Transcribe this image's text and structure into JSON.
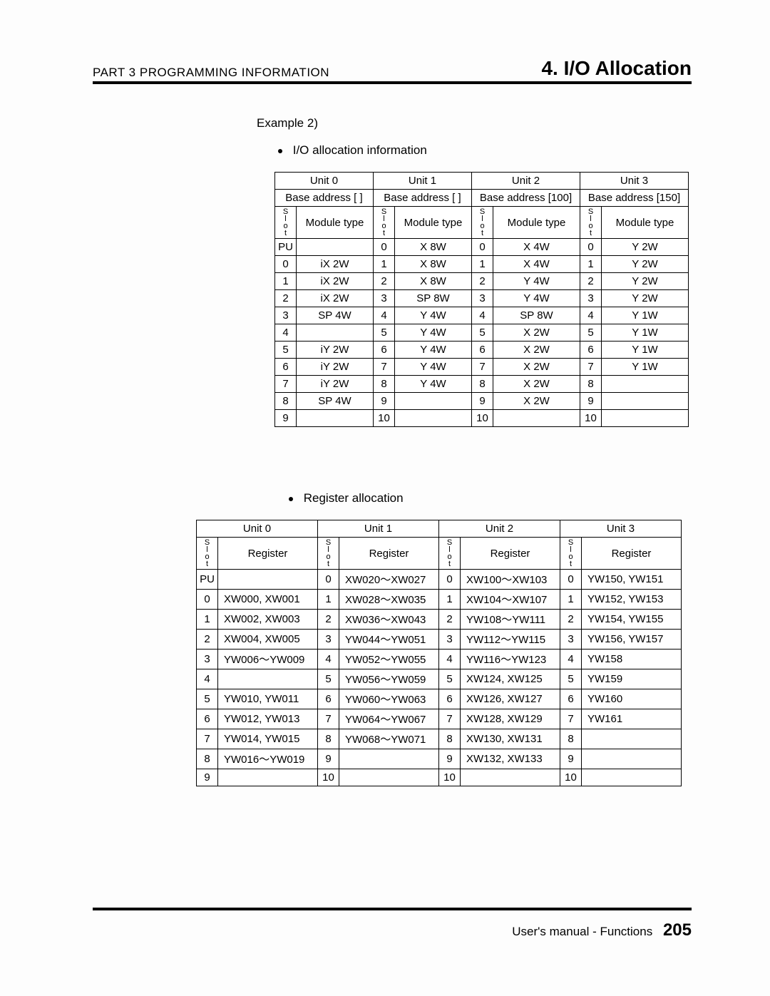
{
  "header": {
    "left": "PART 3  PROGRAMMING  INFORMATION",
    "right": "4. I/O Allocation"
  },
  "example_label": "Example 2)",
  "section1": {
    "bullet": "I/O allocation information",
    "units": [
      "Unit 0",
      "Unit 1",
      "Unit 2",
      "Unit 3"
    ],
    "base_addresses": [
      "Base address [  ]",
      "Base address [  ]",
      "Base address [100]",
      "Base address [150]"
    ],
    "slot_header": "Slot",
    "module_header": "Module type",
    "rows": [
      {
        "u0s": "PU",
        "u0m": "",
        "u1s": "0",
        "u1m": "X 8W",
        "u2s": "0",
        "u2m": "X 4W",
        "u3s": "0",
        "u3m": "Y 2W"
      },
      {
        "u0s": "0",
        "u0m": "iX 2W",
        "u1s": "1",
        "u1m": "X 8W",
        "u2s": "1",
        "u2m": "X 4W",
        "u3s": "1",
        "u3m": "Y 2W"
      },
      {
        "u0s": "1",
        "u0m": "iX 2W",
        "u1s": "2",
        "u1m": "X 8W",
        "u2s": "2",
        "u2m": "Y 4W",
        "u3s": "2",
        "u3m": "Y 2W"
      },
      {
        "u0s": "2",
        "u0m": "iX 2W",
        "u1s": "3",
        "u1m": "SP 8W",
        "u2s": "3",
        "u2m": "Y 4W",
        "u3s": "3",
        "u3m": "Y 2W"
      },
      {
        "u0s": "3",
        "u0m": "SP 4W",
        "u1s": "4",
        "u1m": "Y 4W",
        "u2s": "4",
        "u2m": "SP 8W",
        "u3s": "4",
        "u3m": "Y 1W"
      },
      {
        "u0s": "4",
        "u0m": "",
        "u1s": "5",
        "u1m": "Y 4W",
        "u2s": "5",
        "u2m": "X 2W",
        "u3s": "5",
        "u3m": "Y 1W"
      },
      {
        "u0s": "5",
        "u0m": "iY 2W",
        "u1s": "6",
        "u1m": "Y 4W",
        "u2s": "6",
        "u2m": "X 2W",
        "u3s": "6",
        "u3m": "Y 1W"
      },
      {
        "u0s": "6",
        "u0m": "iY 2W",
        "u1s": "7",
        "u1m": "Y 4W",
        "u2s": "7",
        "u2m": "X 2W",
        "u3s": "7",
        "u3m": "Y 1W"
      },
      {
        "u0s": "7",
        "u0m": "iY 2W",
        "u1s": "8",
        "u1m": "Y 4W",
        "u2s": "8",
        "u2m": "X 2W",
        "u3s": "8",
        "u3m": ""
      },
      {
        "u0s": "8",
        "u0m": "SP 4W",
        "u1s": "9",
        "u1m": "",
        "u2s": "9",
        "u2m": "X 2W",
        "u3s": "9",
        "u3m": ""
      },
      {
        "u0s": "9",
        "u0m": "",
        "u1s": "10",
        "u1m": "",
        "u2s": "10",
        "u2m": "",
        "u3s": "10",
        "u3m": ""
      }
    ]
  },
  "section2": {
    "bullet": "Register allocation",
    "units": [
      "Unit 0",
      "Unit 1",
      "Unit 2",
      "Unit 3"
    ],
    "slot_header": "Slot",
    "register_header": "Register",
    "rows": [
      {
        "u0s": "PU",
        "u0r": "",
        "u1s": "0",
        "u1r": "XW020～XW027",
        "u2s": "0",
        "u2r": "XW100～XW103",
        "u3s": "0",
        "u3r": "YW150,  YW151"
      },
      {
        "u0s": "0",
        "u0r": "XW000,  XW001",
        "u1s": "1",
        "u1r": "XW028～XW035",
        "u2s": "1",
        "u2r": "XW104～XW107",
        "u3s": "1",
        "u3r": "YW152,  YW153"
      },
      {
        "u0s": "1",
        "u0r": "XW002,  XW003",
        "u1s": "2",
        "u1r": "XW036～XW043",
        "u2s": "2",
        "u2r": "YW108～YW111",
        "u3s": "2",
        "u3r": "YW154,  YW155"
      },
      {
        "u0s": "2",
        "u0r": "XW004,  XW005",
        "u1s": "3",
        "u1r": "YW044～YW051",
        "u2s": "3",
        "u2r": "YW112～YW115",
        "u3s": "3",
        "u3r": "YW156,  YW157"
      },
      {
        "u0s": "3",
        "u0r": "YW006～YW009",
        "u1s": "4",
        "u1r": "YW052～YW055",
        "u2s": "4",
        "u2r": "YW116～YW123",
        "u3s": "4",
        "u3r": "YW158"
      },
      {
        "u0s": "4",
        "u0r": "",
        "u1s": "5",
        "u1r": "YW056～YW059",
        "u2s": "5",
        "u2r": "XW124,  XW125",
        "u3s": "5",
        "u3r": "YW159"
      },
      {
        "u0s": "5",
        "u0r": "YW010,  YW011",
        "u1s": "6",
        "u1r": "YW060～YW063",
        "u2s": "6",
        "u2r": "XW126,  XW127",
        "u3s": "6",
        "u3r": "YW160"
      },
      {
        "u0s": "6",
        "u0r": "YW012,  YW013",
        "u1s": "7",
        "u1r": "YW064～YW067",
        "u2s": "7",
        "u2r": "XW128,  XW129",
        "u3s": "7",
        "u3r": "YW161"
      },
      {
        "u0s": "7",
        "u0r": "YW014,  YW015",
        "u1s": "8",
        "u1r": "YW068～YW071",
        "u2s": "8",
        "u2r": "XW130,  XW131",
        "u3s": "8",
        "u3r": ""
      },
      {
        "u0s": "8",
        "u0r": "YW016～YW019",
        "u1s": "9",
        "u1r": "",
        "u2s": "9",
        "u2r": "XW132,  XW133",
        "u3s": "9",
        "u3r": ""
      },
      {
        "u0s": "9",
        "u0r": "",
        "u1s": "10",
        "u1r": "",
        "u2s": "10",
        "u2r": "",
        "u3s": "10",
        "u3r": ""
      }
    ]
  },
  "footer": {
    "text": "User's manual - Functions",
    "page": "205"
  }
}
